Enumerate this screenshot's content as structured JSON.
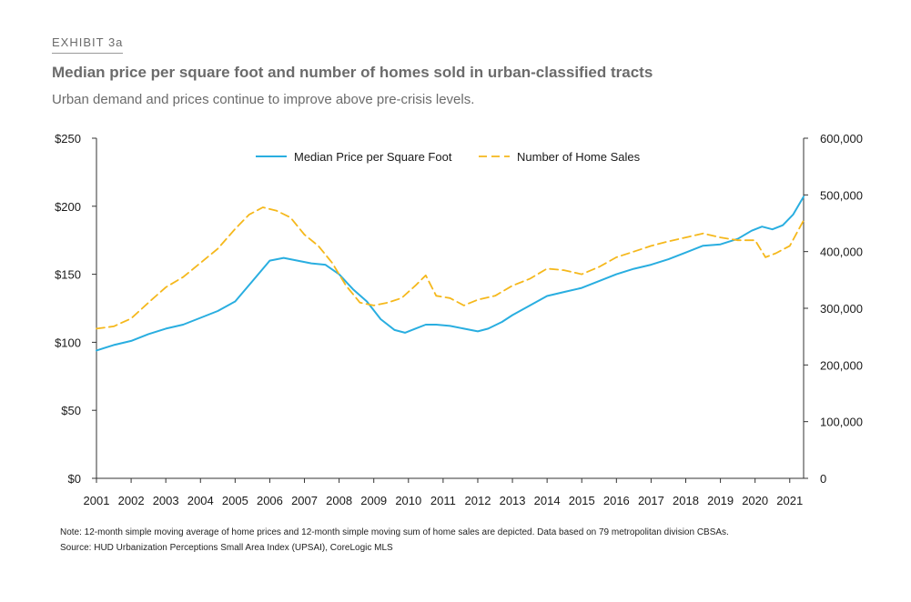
{
  "header": {
    "exhibit": "EXHIBIT 3a",
    "title": "Median price per square foot and number of homes sold in urban-classified tracts",
    "subtitle": "Urban demand and prices continue to improve above pre-crisis levels."
  },
  "footer": {
    "note": "Note: 12-month simple moving average of home prices and 12-month simple moving sum of home sales are depicted. Data based on 79 metropolitan division CBSAs.",
    "source": "Source: HUD Urbanization Perceptions Small Area Index (UPSAI), CoreLogic MLS"
  },
  "colors": {
    "price": "#29aee0",
    "sales": "#f5b81c",
    "axis": "#333333"
  },
  "chart_data": {
    "type": "line",
    "xlim": [
      2001,
      2021.4
    ],
    "x_ticks": [
      "2001",
      "2002",
      "2003",
      "2004",
      "2005",
      "2006",
      "2007",
      "2008",
      "2009",
      "2010",
      "2011",
      "2012",
      "2013",
      "2014",
      "2015",
      "2016",
      "2017",
      "2018",
      "2019",
      "2020",
      "2021"
    ],
    "y_left": {
      "ylim": [
        0,
        250
      ],
      "ticks": [
        "$0",
        "$50",
        "$100",
        "$150",
        "$200",
        "$250"
      ]
    },
    "y_right": {
      "ylim": [
        0,
        600000
      ],
      "ticks": [
        "0",
        "100,000",
        "200,000",
        "300,000",
        "400,000",
        "500,000",
        "600,000"
      ]
    },
    "legend_position": "top-center",
    "grid": false,
    "series": [
      {
        "name": "Median Price per Square Foot",
        "axis": "left",
        "style": "solid",
        "x": [
          2001,
          2001.5,
          2002,
          2002.5,
          2003,
          2003.5,
          2004,
          2004.5,
          2005,
          2005.5,
          2006,
          2006.4,
          2006.8,
          2007.2,
          2007.6,
          2008,
          2008.4,
          2008.8,
          2009.2,
          2009.6,
          2009.9,
          2010.2,
          2010.5,
          2010.8,
          2011.2,
          2011.6,
          2012,
          2012.3,
          2012.7,
          2013,
          2013.5,
          2014,
          2014.5,
          2015,
          2015.5,
          2016,
          2016.5,
          2017,
          2017.5,
          2018,
          2018.5,
          2019,
          2019.5,
          2019.9,
          2020.2,
          2020.5,
          2020.8,
          2021.1,
          2021.4
        ],
        "values": [
          94,
          98,
          101,
          106,
          110,
          113,
          118,
          123,
          130,
          145,
          160,
          162,
          160,
          158,
          157,
          150,
          139,
          130,
          117,
          109,
          107,
          110,
          113,
          113,
          112,
          110,
          108,
          110,
          115,
          120,
          127,
          134,
          137,
          140,
          145,
          150,
          154,
          157,
          161,
          166,
          171,
          172,
          176,
          182,
          185,
          183,
          186,
          194,
          207
        ]
      },
      {
        "name": "Number of Home Sales",
        "axis": "right",
        "style": "dashed",
        "x": [
          2001,
          2001.5,
          2002,
          2002.5,
          2003,
          2003.5,
          2004,
          2004.5,
          2005,
          2005.4,
          2005.8,
          2006.2,
          2006.6,
          2007,
          2007.4,
          2007.8,
          2008.2,
          2008.6,
          2009,
          2009.4,
          2009.8,
          2010.2,
          2010.5,
          2010.8,
          2011.2,
          2011.6,
          2012,
          2012.5,
          2013,
          2013.5,
          2014,
          2014.5,
          2015,
          2015.5,
          2016,
          2016.5,
          2017,
          2017.5,
          2018,
          2018.5,
          2019,
          2019.5,
          2020,
          2020.3,
          2020.6,
          2021,
          2021.4
        ],
        "values": [
          264000,
          268000,
          282000,
          310000,
          337000,
          355000,
          380000,
          405000,
          440000,
          465000,
          478000,
          472000,
          460000,
          430000,
          410000,
          380000,
          340000,
          310000,
          305000,
          310000,
          318000,
          340000,
          358000,
          322000,
          318000,
          305000,
          315000,
          322000,
          340000,
          352000,
          370000,
          367000,
          360000,
          373000,
          390000,
          400000,
          410000,
          418000,
          425000,
          432000,
          425000,
          420000,
          420000,
          390000,
          397000,
          410000,
          455000
        ]
      }
    ]
  }
}
